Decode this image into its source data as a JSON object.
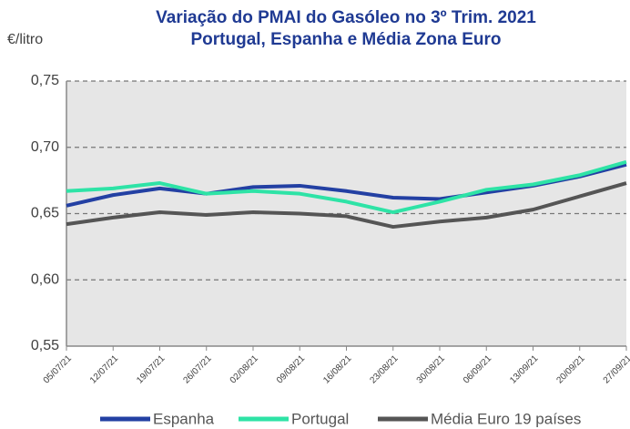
{
  "chart_data": {
    "type": "line",
    "title": "Variação do PMAI do Gasóleo no 3º Trim. 2021",
    "subtitle": "Portugal, Espanha e Média Zona Euro",
    "y_label": "€/litro",
    "categories": [
      "05/07/21",
      "12/07/21",
      "19/07/21",
      "26/07/21",
      "02/08/21",
      "09/08/21",
      "16/08/21",
      "23/08/21",
      "30/08/21",
      "06/09/21",
      "13/09/21",
      "20/09/21",
      "27/09/21"
    ],
    "series": [
      {
        "name": "Espanha",
        "color": "#2340a3",
        "values": [
          0.656,
          0.664,
          0.669,
          0.665,
          0.67,
          0.671,
          0.667,
          0.662,
          0.661,
          0.666,
          0.671,
          0.678,
          0.687
        ]
      },
      {
        "name": "Portugal",
        "color": "#2ee3a6",
        "values": [
          0.667,
          0.669,
          0.673,
          0.665,
          0.667,
          0.665,
          0.659,
          0.651,
          0.659,
          0.668,
          0.672,
          0.679,
          0.689
        ]
      },
      {
        "name": "Média Euro 19 países",
        "color": "#555555",
        "values": [
          0.642,
          0.647,
          0.651,
          0.649,
          0.651,
          0.65,
          0.648,
          0.64,
          0.644,
          0.647,
          0.653,
          0.663,
          0.673
        ]
      }
    ],
    "ylim": [
      0.55,
      0.75
    ],
    "yticks": [
      {
        "value": 0.55,
        "label": "0,55"
      },
      {
        "value": 0.6,
        "label": "0,60"
      },
      {
        "value": 0.65,
        "label": "0,65"
      },
      {
        "value": 0.7,
        "label": "0,70"
      },
      {
        "value": 0.75,
        "label": "0,75"
      }
    ],
    "grid": true,
    "legend": "bottom"
  }
}
